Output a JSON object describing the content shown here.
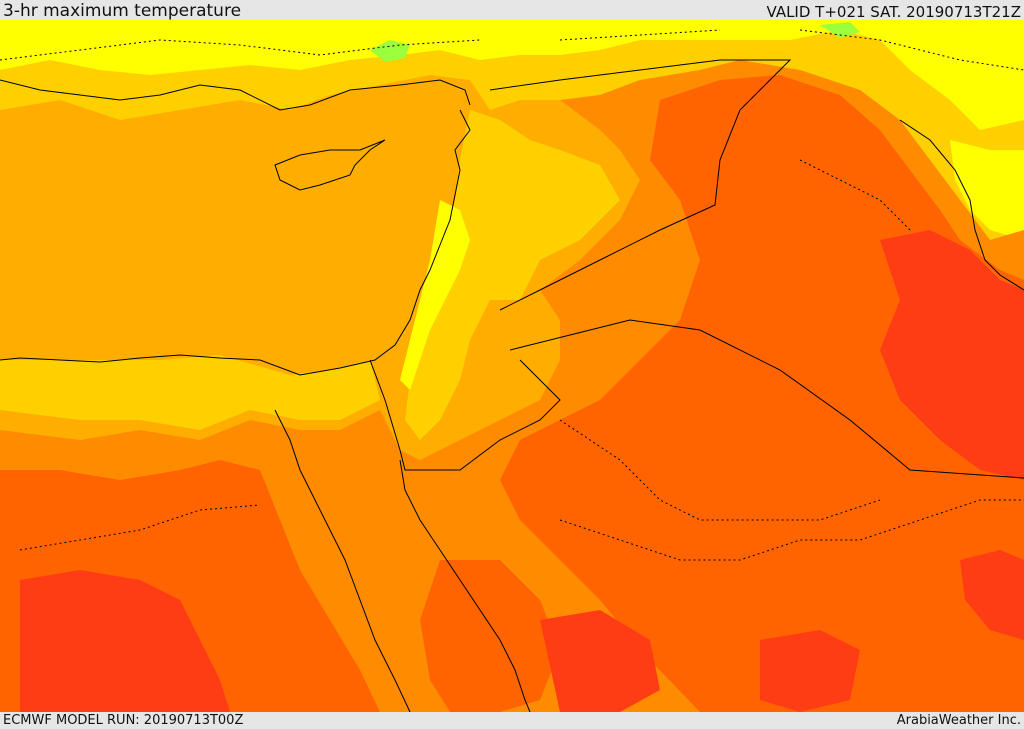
{
  "header": {
    "title": "3-hr maximum temperature",
    "valid_time": "VALID T+021 SAT. 20190713T21Z"
  },
  "footer": {
    "model_run": "ECMWF MODEL RUN: 20190713T00Z",
    "credit": "ArabiaWeather Inc."
  },
  "map": {
    "field": "3-hr maximum temperature",
    "colors": {
      "sea": "#ffae00",
      "warm_light": "#ffd000",
      "cool_yellow": "#ffff00",
      "coolest_green": "#9bff3c",
      "hot": "#ff8c00",
      "very_hot": "#ff6400",
      "extreme": "#ff3d14",
      "borders": "#000000"
    }
  }
}
